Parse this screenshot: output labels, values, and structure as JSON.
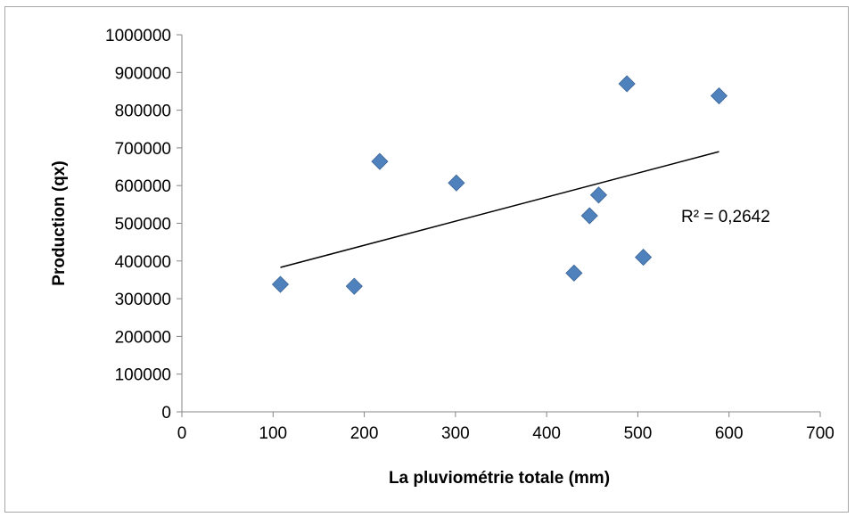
{
  "chart_data": {
    "type": "scatter",
    "title": "",
    "xlabel": "La pluviométrie totale (mm)",
    "ylabel": "Production (qx)",
    "xlim": [
      0,
      700
    ],
    "ylim": [
      0,
      1000000
    ],
    "x_ticks": [
      "0",
      "100",
      "200",
      "300",
      "400",
      "500",
      "600",
      "700"
    ],
    "y_ticks": [
      "0",
      "100000",
      "200000",
      "300000",
      "400000",
      "500000",
      "600000",
      "700000",
      "800000",
      "900000",
      "1000000"
    ],
    "x_tick_values": [
      0,
      100,
      200,
      300,
      400,
      500,
      600,
      700
    ],
    "y_tick_values": [
      0,
      100000,
      200000,
      300000,
      400000,
      500000,
      600000,
      700000,
      800000,
      900000,
      1000000
    ],
    "grid": false,
    "legend": "none",
    "marker_color": "#4f81bd",
    "points": [
      {
        "x": 108,
        "y": 338000
      },
      {
        "x": 189,
        "y": 333000
      },
      {
        "x": 217,
        "y": 664000
      },
      {
        "x": 301,
        "y": 607000
      },
      {
        "x": 430,
        "y": 368000
      },
      {
        "x": 447,
        "y": 520000
      },
      {
        "x": 457,
        "y": 575000
      },
      {
        "x": 488,
        "y": 870000
      },
      {
        "x": 506,
        "y": 410000
      },
      {
        "x": 589,
        "y": 838000
      }
    ],
    "trendline": {
      "type": "linear",
      "x_start": 108,
      "y_start": 383000,
      "x_end": 589,
      "y_end": 690000,
      "color": "#000000",
      "r_squared_label": "R² = 0,2642"
    }
  }
}
